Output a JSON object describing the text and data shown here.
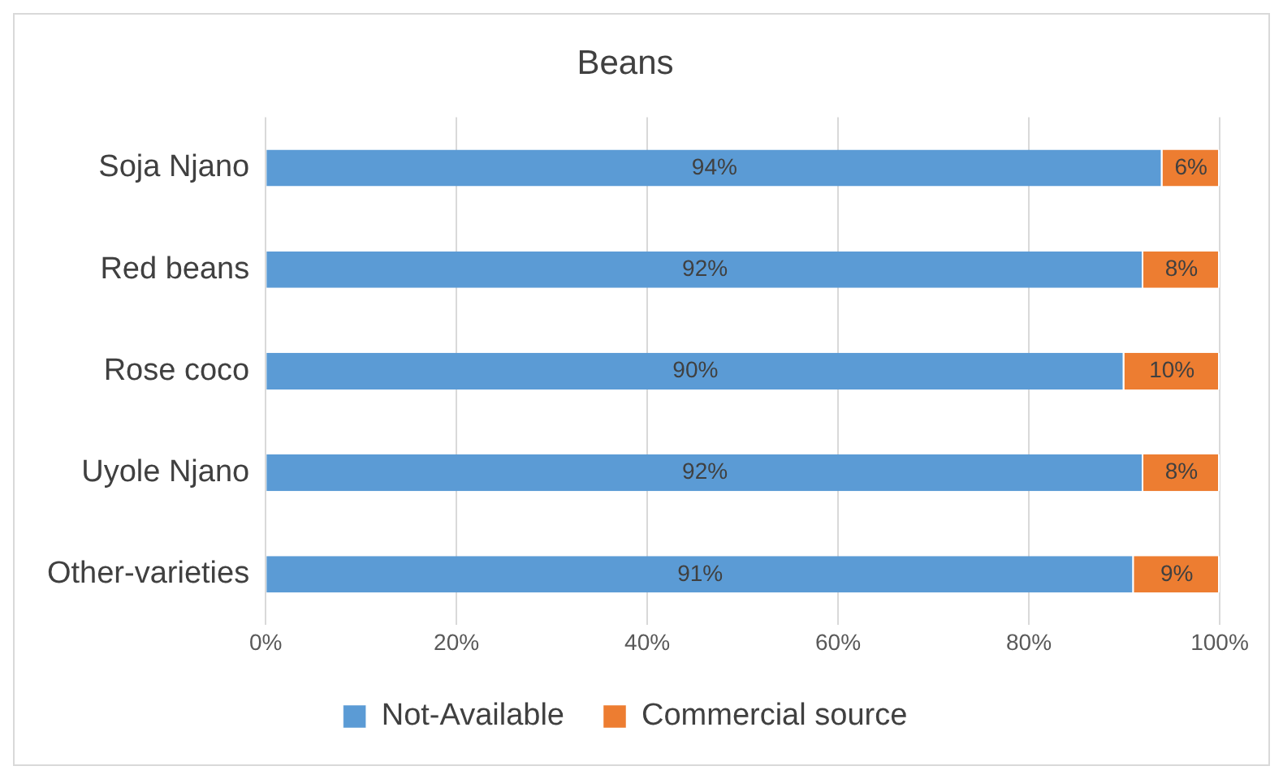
{
  "chart_data": {
    "type": "bar",
    "title": "Beans",
    "orientation": "horizontal",
    "stacked": true,
    "categories": [
      "Soja Njano",
      "Red beans",
      "Rose coco",
      "Uyole Njano",
      "Other-varieties"
    ],
    "series": [
      {
        "name": "Not-Available",
        "color": "#5b9bd5",
        "values": [
          94,
          92,
          90,
          92,
          91
        ],
        "value_labels": [
          "94%",
          "92%",
          "90%",
          "92%",
          "91%"
        ]
      },
      {
        "name": "Commercial source",
        "color": "#ed7d31",
        "values": [
          6,
          8,
          10,
          8,
          9
        ],
        "value_labels": [
          "6%",
          "8%",
          "10%",
          "8%",
          "9%"
        ]
      }
    ],
    "xlim": [
      0,
      100
    ],
    "xticks": [
      {
        "value": 0,
        "label": "0%"
      },
      {
        "value": 20,
        "label": "20%"
      },
      {
        "value": 40,
        "label": "40%"
      },
      {
        "value": 60,
        "label": "60%"
      },
      {
        "value": 80,
        "label": "80%"
      },
      {
        "value": 100,
        "label": "100%"
      }
    ],
    "grid": "x",
    "legend": "bottom"
  }
}
